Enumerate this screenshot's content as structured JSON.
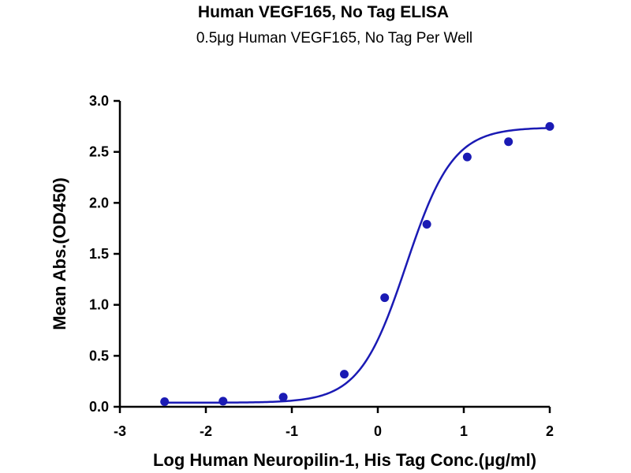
{
  "chart_data": {
    "type": "scatter",
    "title": "Human VEGF165, No Tag ELISA",
    "subtitle": "0.5μg Human VEGF165, No Tag Per Well",
    "xlabel": "Log Human Neuropilin-1, His Tag Conc.(μg/ml)",
    "ylabel": "Mean Abs.(OD450)",
    "xlim": [
      -3,
      2
    ],
    "ylim": [
      0,
      3
    ],
    "x_ticks": [
      -3,
      -2,
      -1,
      0,
      1,
      2
    ],
    "x_tick_labels": [
      "-3",
      "-2",
      "-1",
      "0",
      "1",
      "2"
    ],
    "y_ticks": [
      0,
      0.5,
      1,
      1.5,
      2,
      2.5,
      3
    ],
    "y_tick_labels": [
      "0.0",
      "0.5",
      "1.0",
      "1.5",
      "2.0",
      "2.5",
      "3.0"
    ],
    "grid": false,
    "legend": "none",
    "color": "#1a1ab4",
    "series": [
      {
        "x": [
          -2.48,
          -1.8,
          -1.1,
          -0.39,
          0.08,
          0.57,
          1.04,
          1.52,
          2.0
        ],
        "y": [
          0.05,
          0.055,
          0.095,
          0.32,
          1.07,
          1.79,
          2.45,
          2.6,
          2.75
        ]
      }
    ],
    "fit_curve": {
      "model": "4PL",
      "bottom": 0.04,
      "top": 2.74,
      "log_ec50": 0.33,
      "hill_slope": 1.6
    }
  }
}
